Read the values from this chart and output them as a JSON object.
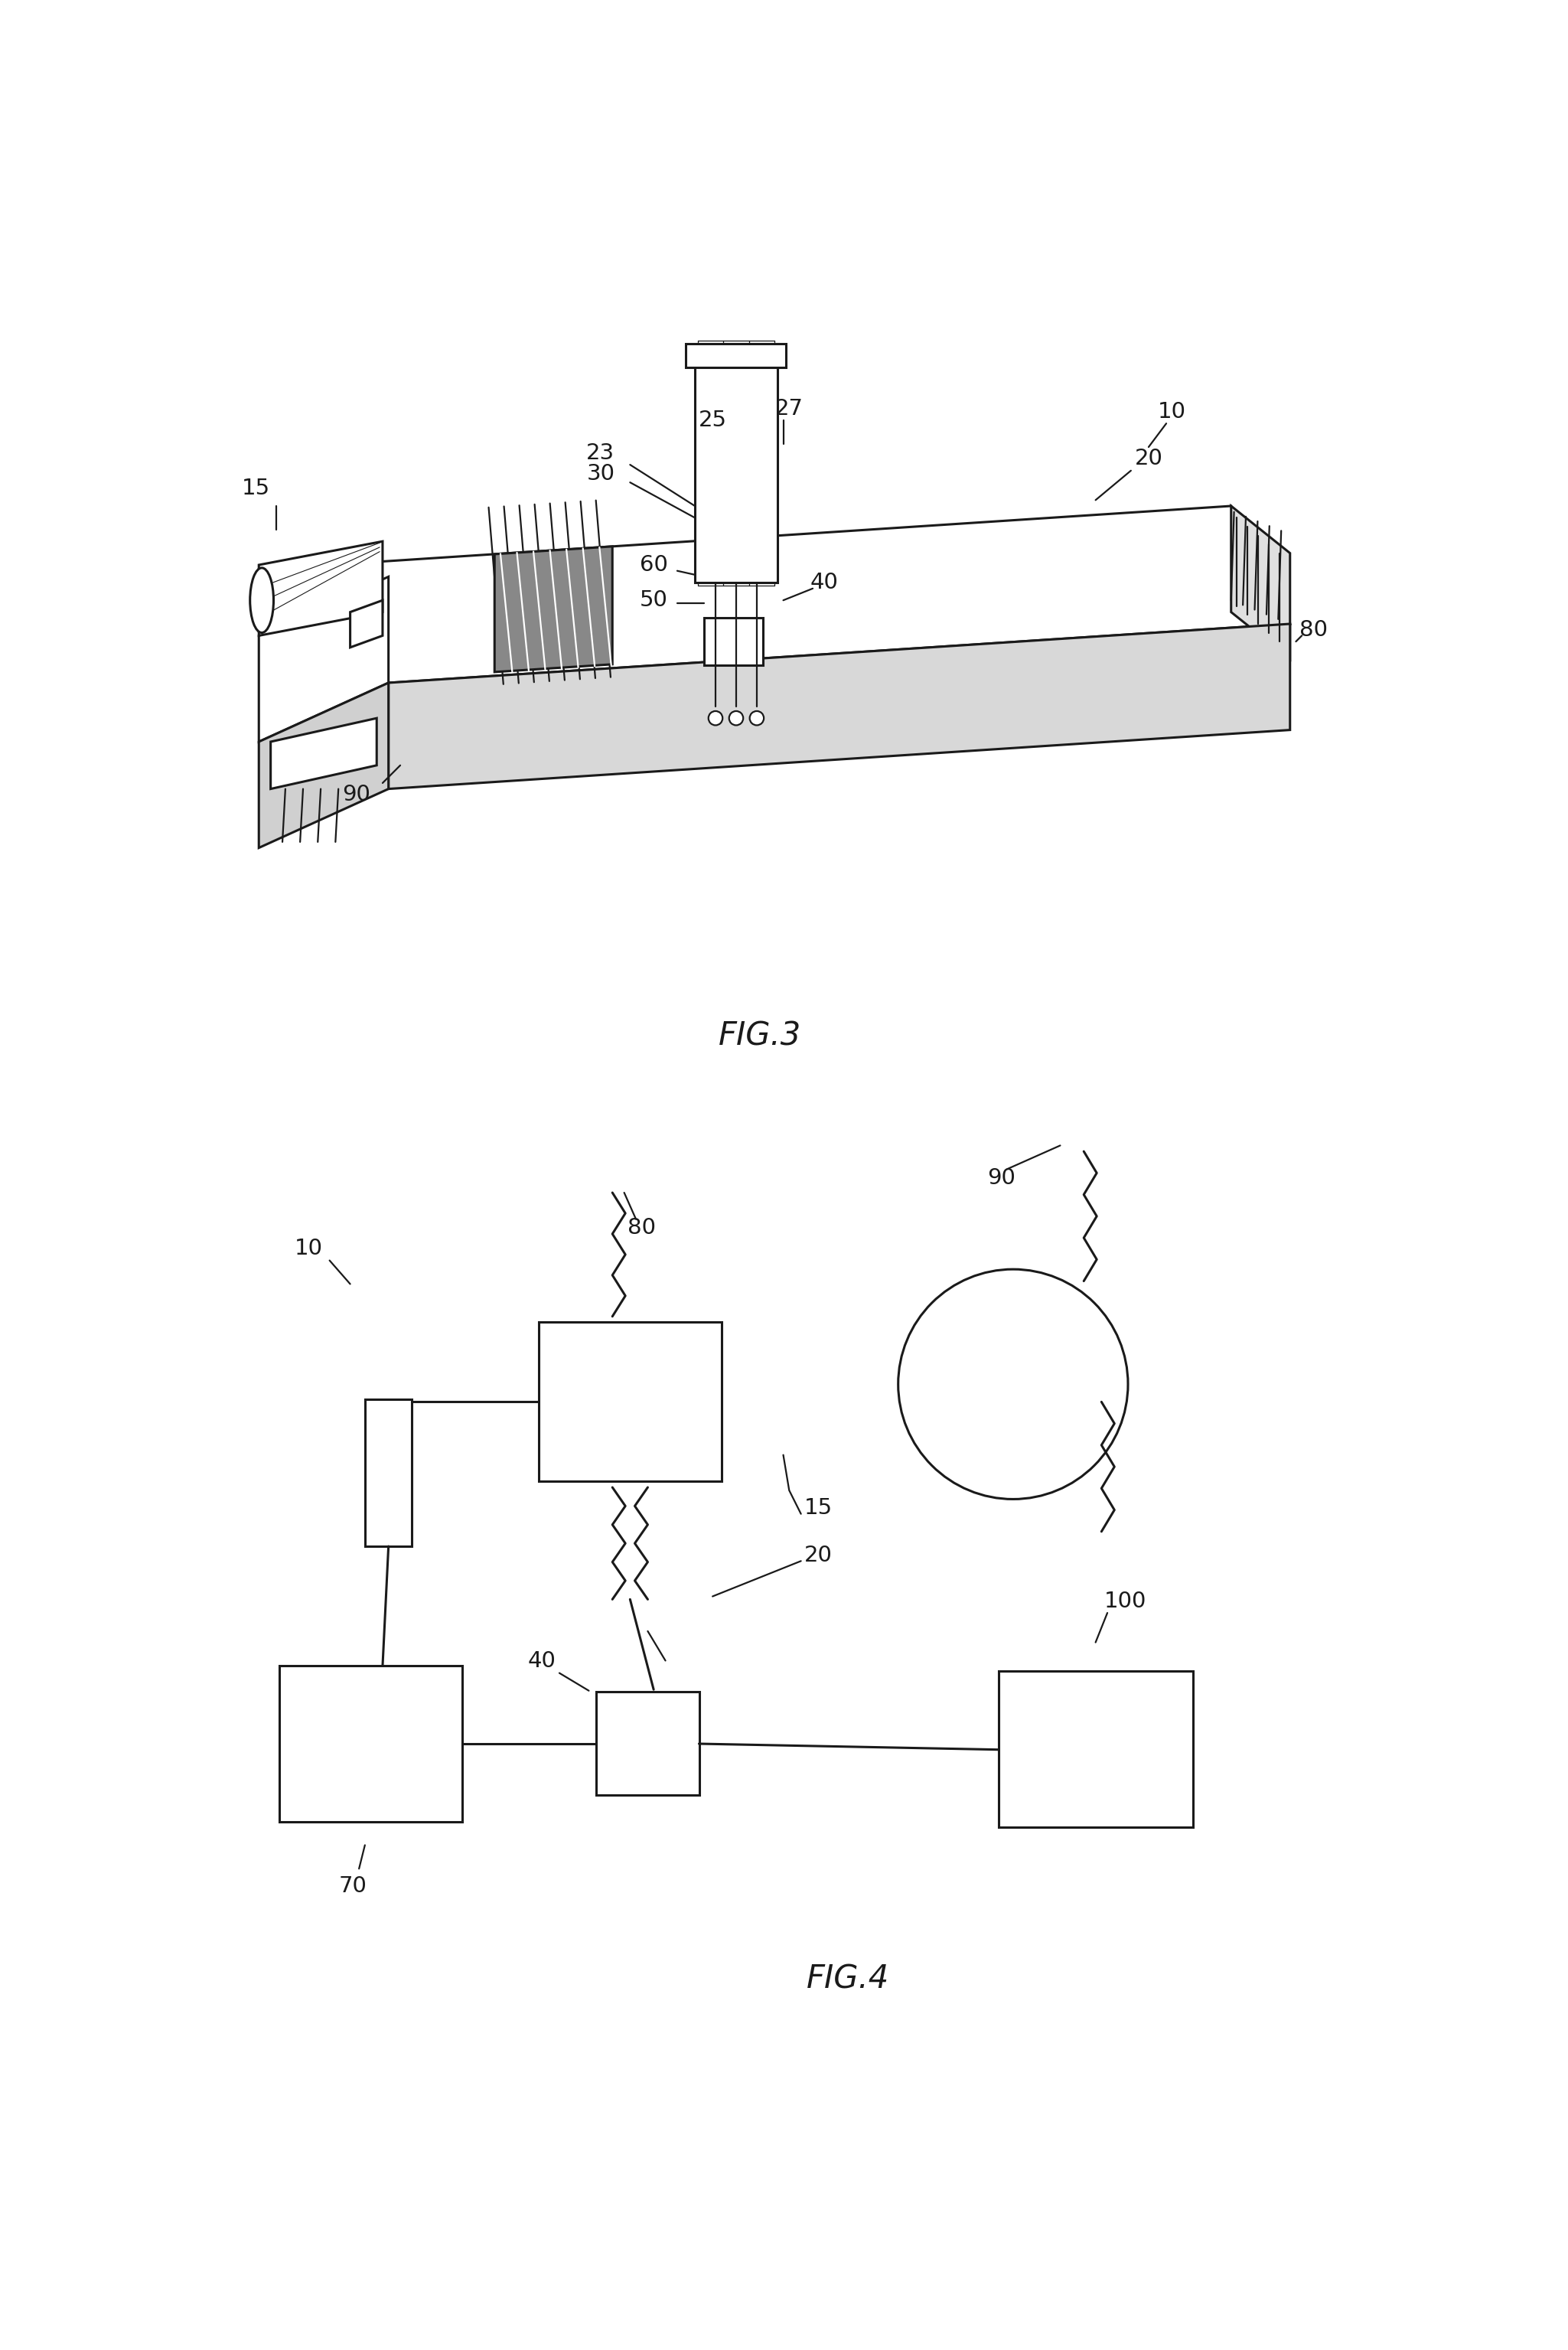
{
  "fig_width": 20.49,
  "fig_height": 30.7,
  "bg_color": "#ffffff",
  "line_color": "#1a1a1a",
  "lw": 2.2,
  "tlw": 1.6,
  "fs": 20,
  "fig3_title": "FIG.3",
  "fig4_title": "FIG.4"
}
